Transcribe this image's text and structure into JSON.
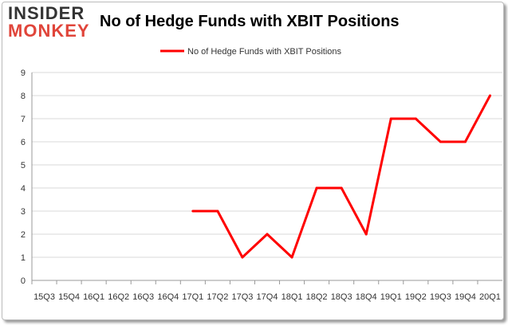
{
  "logo": {
    "line1": "INSIDER",
    "line2": "MONKEY"
  },
  "chart_data": {
    "type": "line",
    "title": "No of Hedge Funds with XBIT Positions",
    "legend": "No of Hedge Funds with XBIT Positions",
    "legend_position": "top",
    "categories": [
      "15Q3",
      "15Q4",
      "16Q1",
      "16Q2",
      "16Q3",
      "16Q4",
      "17Q1",
      "17Q2",
      "17Q3",
      "17Q4",
      "18Q1",
      "18Q2",
      "18Q3",
      "18Q4",
      "19Q1",
      "19Q2",
      "19Q3",
      "19Q4",
      "20Q1"
    ],
    "series": [
      {
        "name": "No of Hedge Funds with XBIT Positions",
        "color": "#ff0000",
        "values": [
          null,
          null,
          null,
          null,
          null,
          null,
          3,
          3,
          1,
          2,
          1,
          4,
          4,
          2,
          7,
          7,
          6,
          6,
          8
        ]
      }
    ],
    "ylim": [
      0,
      9
    ],
    "yticks": [
      0,
      1,
      2,
      3,
      4,
      5,
      6,
      7,
      8,
      9
    ],
    "xlabel": "",
    "ylabel": ""
  }
}
